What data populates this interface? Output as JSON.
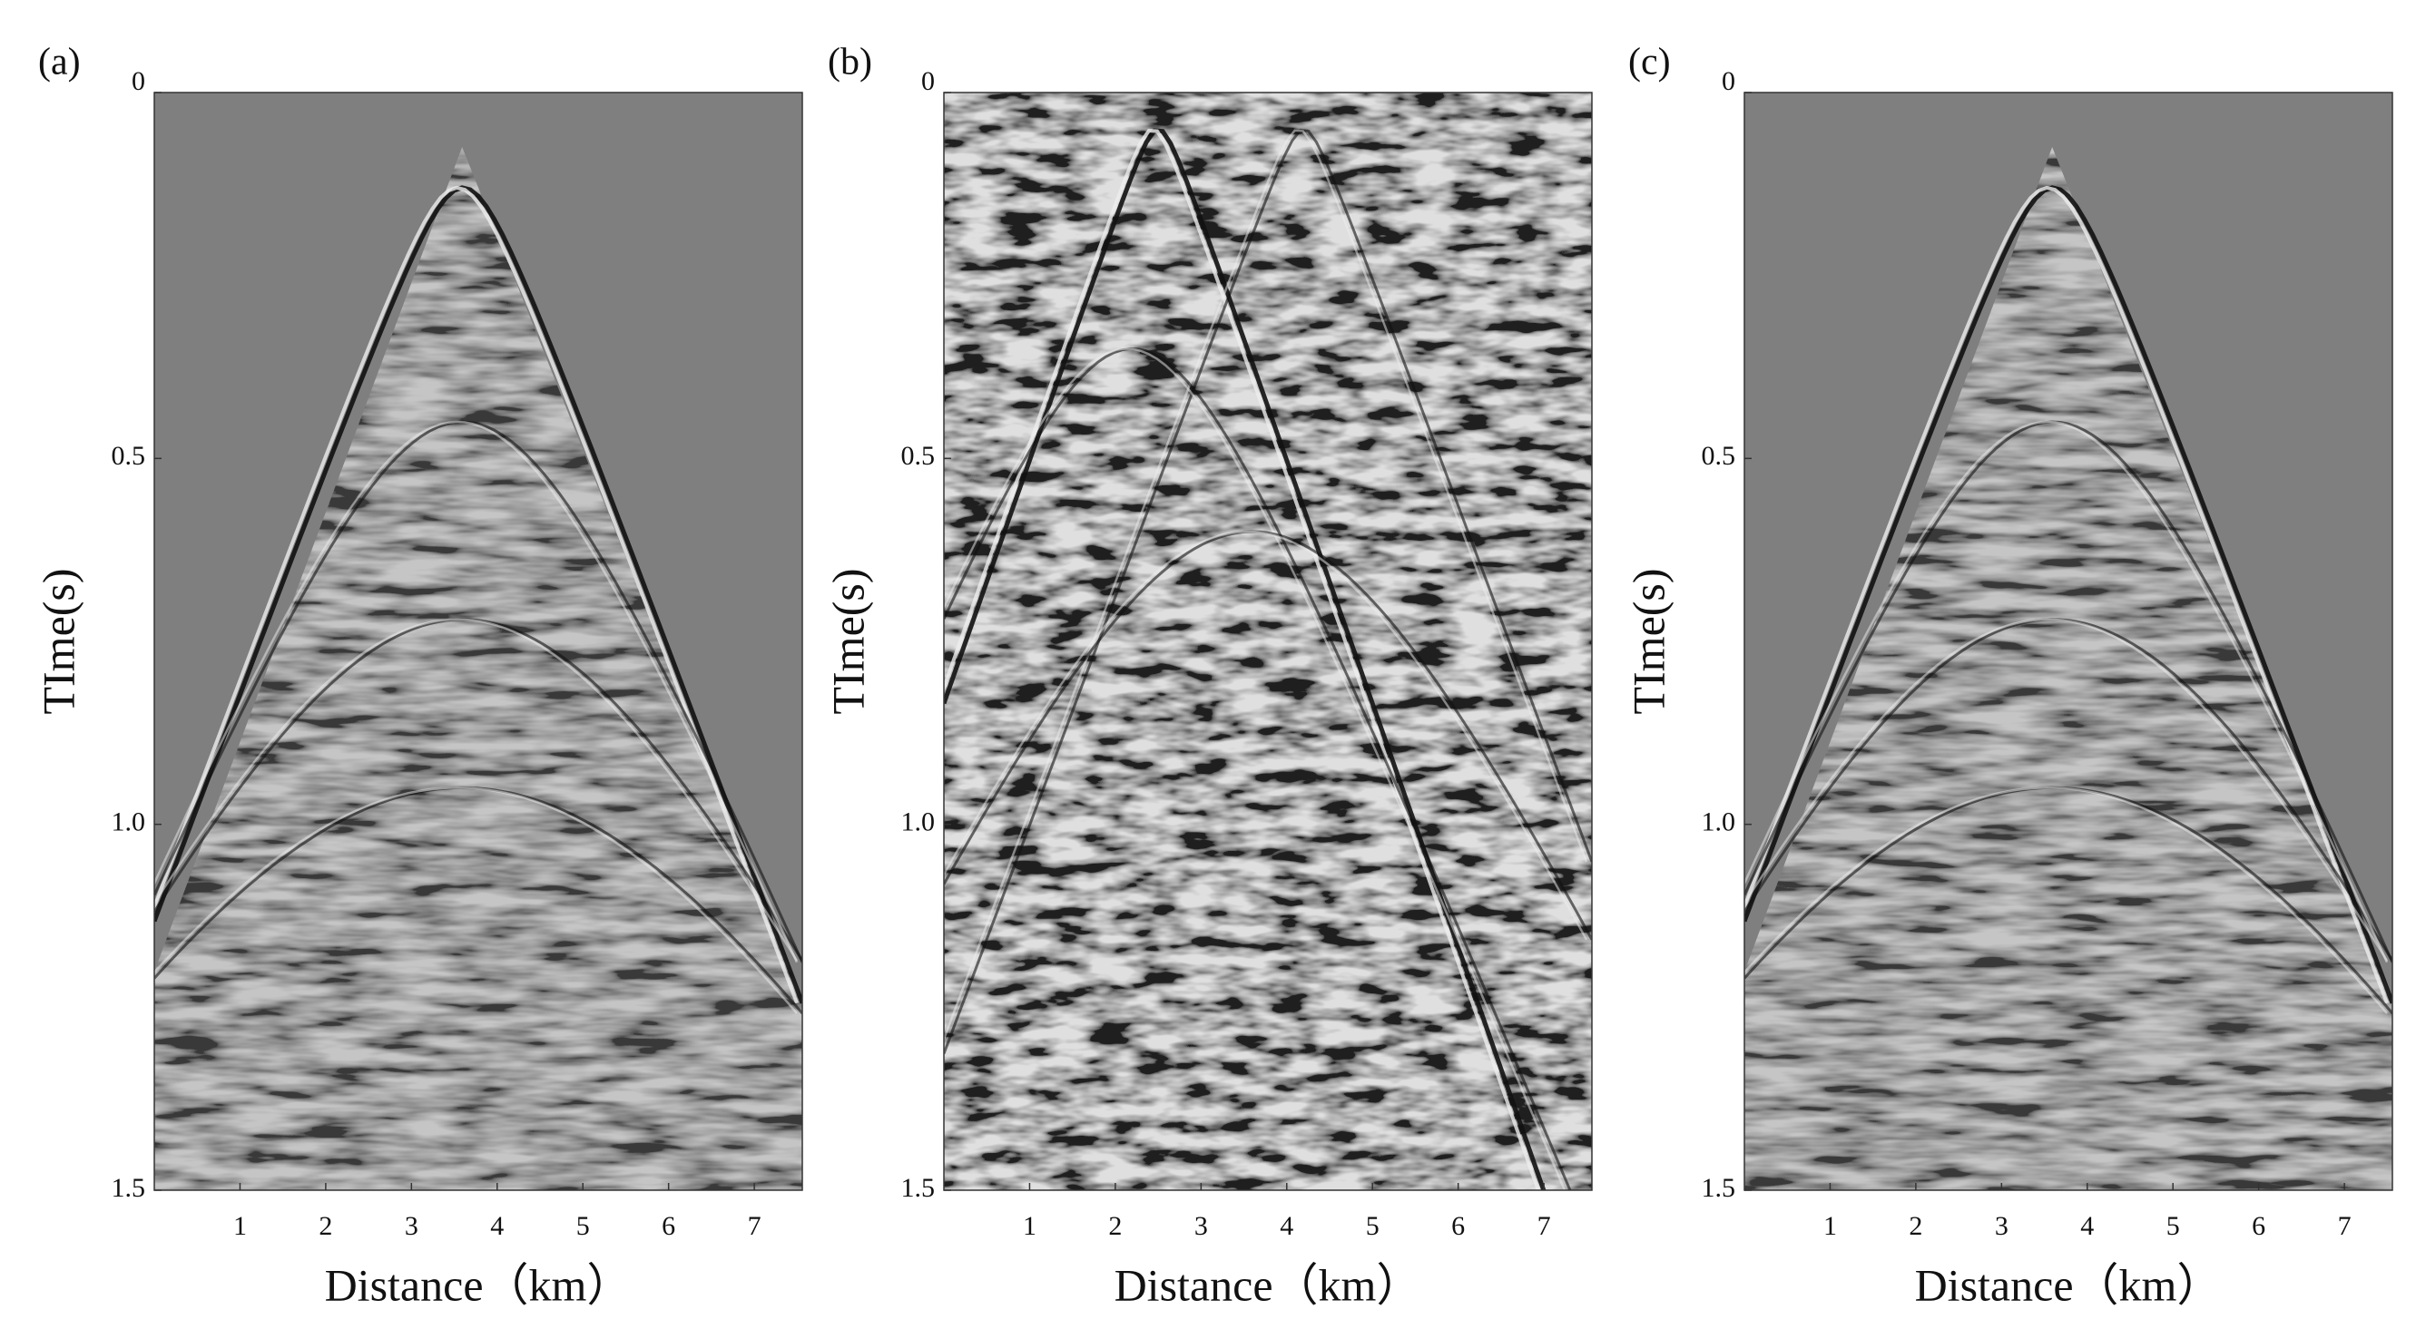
{
  "chart_data": [
    {
      "type": "seismic",
      "panel_label": "(a)",
      "xlabel": "Distance（km）",
      "ylabel": "TIme(s)",
      "xlim": [
        0,
        7.56
      ],
      "xticks": [
        1,
        2,
        3,
        4,
        5,
        6,
        7
      ],
      "ylim": [
        0,
        1.5
      ],
      "yticks": [
        0,
        0.5,
        {
          "value": 1,
          "label": "1.0"
        },
        1.5
      ],
      "y_inverted": true
    },
    {
      "type": "seismic",
      "panel_label": "(b)",
      "xlabel": "Distance（km）",
      "ylabel": "TIme(s)",
      "xlim": [
        0,
        7.56
      ],
      "xticks": [
        1,
        2,
        3,
        4,
        5,
        6,
        7
      ],
      "ylim": [
        0,
        1.5
      ],
      "yticks": [
        0,
        0.5,
        {
          "value": 1,
          "label": "1.0"
        },
        1.5
      ],
      "y_inverted": true
    },
    {
      "type": "seismic",
      "panel_label": "(c)",
      "xlabel": "Distance（km）",
      "ylabel": "TIme(s)",
      "xlim": [
        0,
        7.56
      ],
      "xticks": [
        1,
        2,
        3,
        4,
        5,
        6,
        7
      ],
      "ylim": [
        0,
        1.5
      ],
      "yticks": [
        0,
        0.5,
        {
          "value": 1,
          "label": "1.0"
        },
        1.5
      ],
      "y_inverted": true
    }
  ]
}
